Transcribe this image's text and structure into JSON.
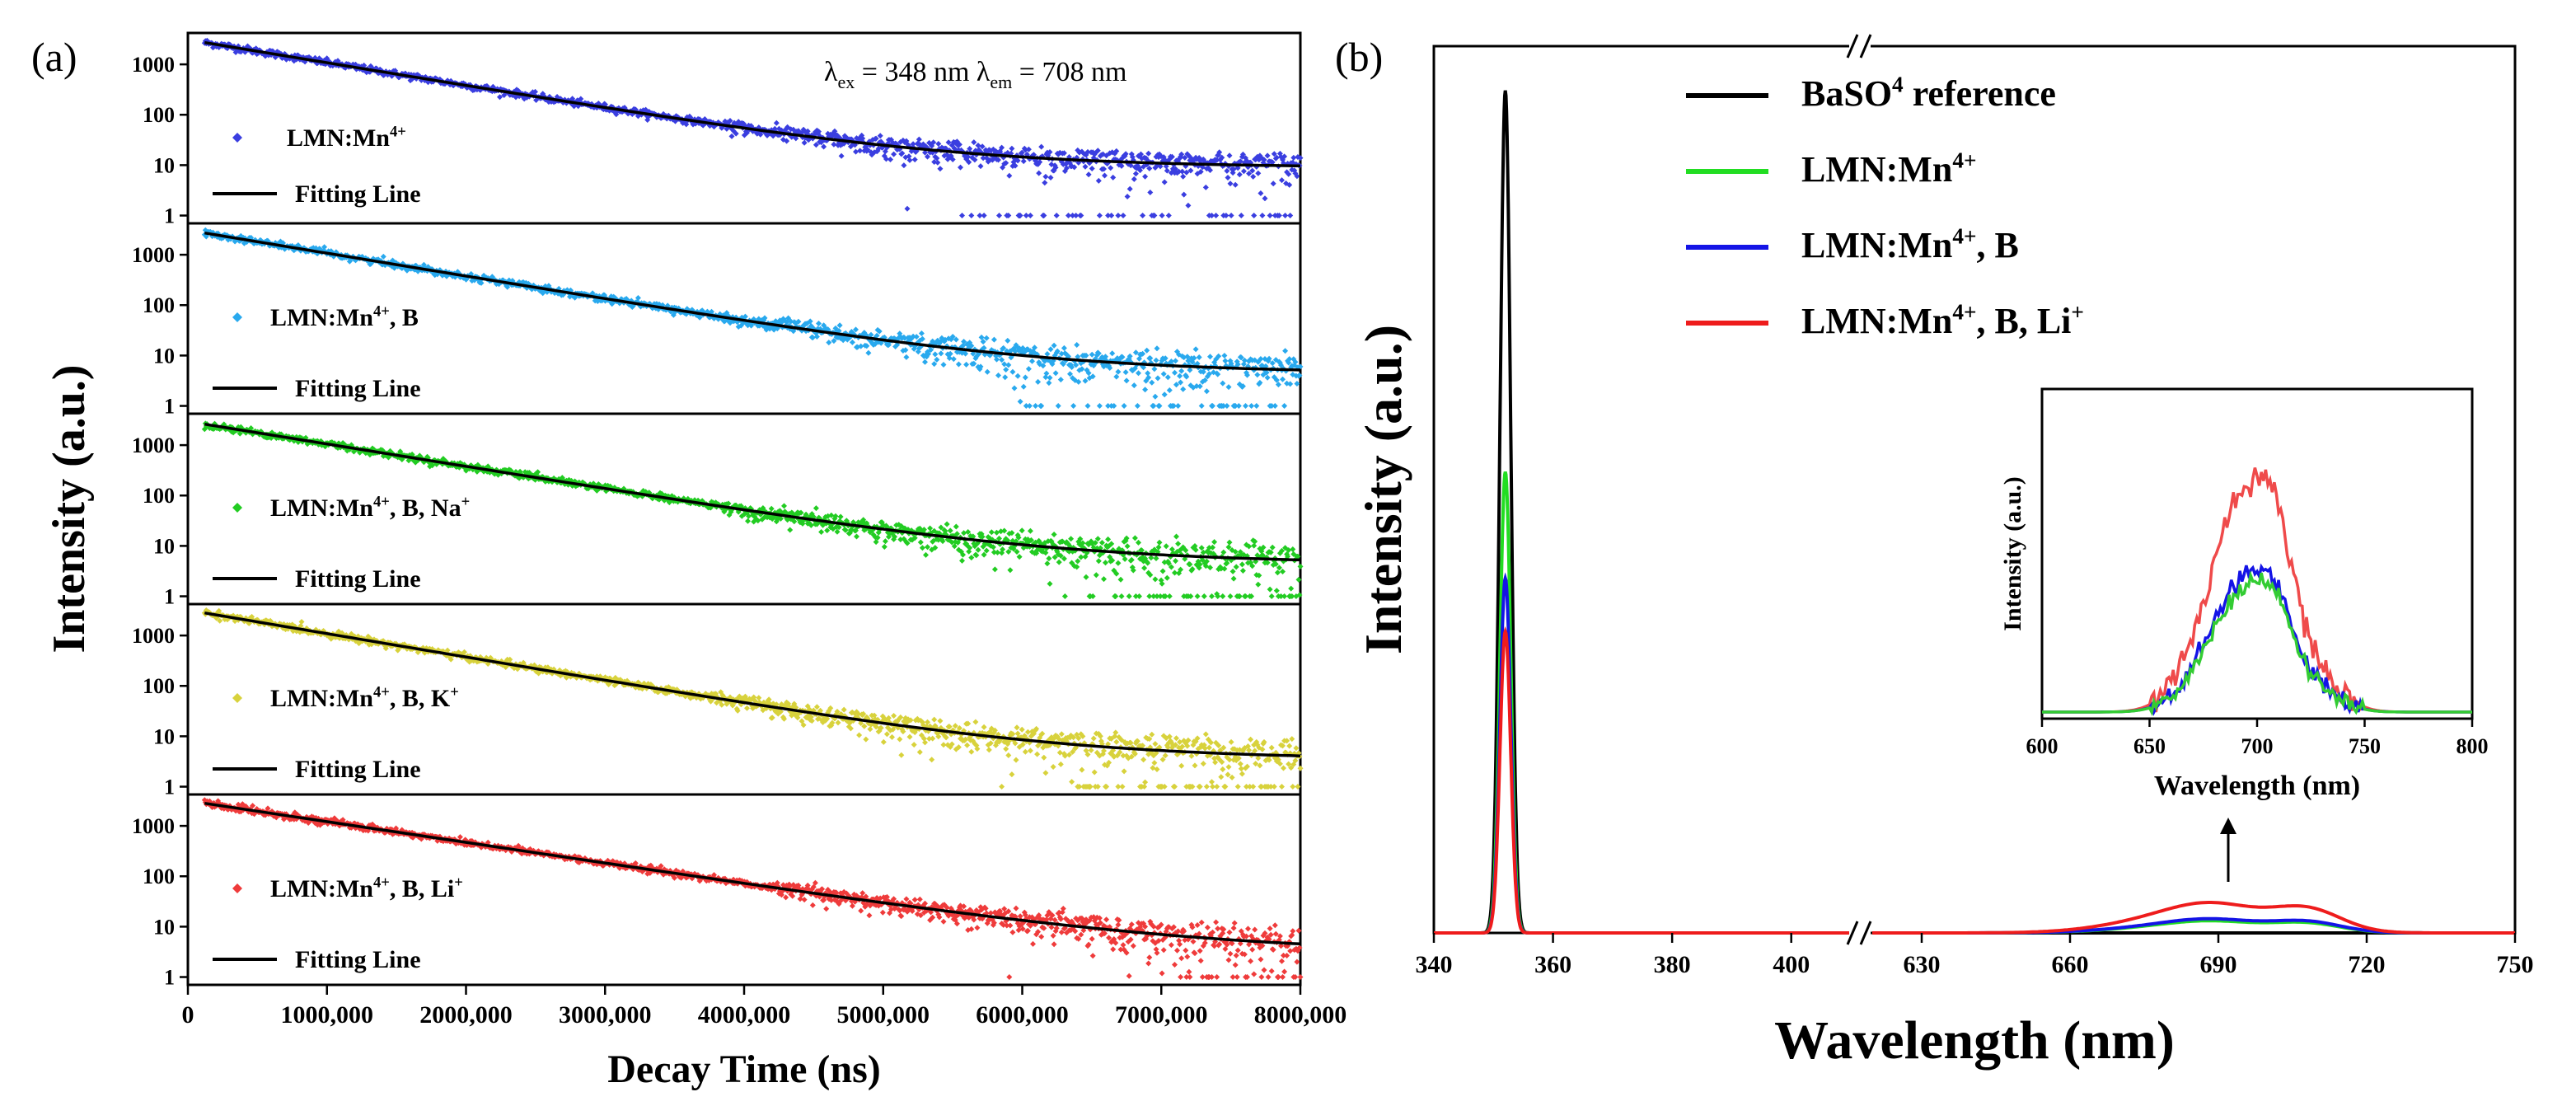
{
  "panels": {
    "a": {
      "tag": "(a)"
    },
    "b": {
      "tag": "(b)"
    }
  },
  "chart_data": [
    {
      "panel": "a",
      "type": "scatter",
      "xlabel": "Decay Time (ns)",
      "ylabel": "Intensity (a.u.)",
      "annotation": {
        "ex_symbol": "λ",
        "ex_sub": "ex",
        "ex_text": "= 348 nm",
        "em_symbol": "λ",
        "em_sub": "em",
        "em_text": "= 708 nm"
      },
      "xlim": [
        0,
        8000000
      ],
      "x_ticks": [
        0,
        1000000,
        2000000,
        3000000,
        4000000,
        5000000,
        6000000,
        7000000,
        8000000
      ],
      "x_tick_labels": [
        "0",
        "1000,000",
        "2000,000",
        "3000,000",
        "4000,000",
        "5000,000",
        "6000,000",
        "7000,000",
        "8000,000"
      ],
      "y_scale": "log",
      "y_ticks": [
        1,
        10,
        100,
        1000
      ],
      "y_tick_labels": [
        "1",
        "10",
        "100",
        "1000"
      ],
      "fit_label": "Fitting Line",
      "fit_color": "#000000",
      "subplots": [
        {
          "name": "LMN:Mn4+",
          "label_parts": [
            "LMN:Mn",
            "4+",
            ""
          ],
          "color": "#3a3ee0",
          "fit": {
            "I0": 2700,
            "tau": 950000,
            "offset": 9
          },
          "start_intensity": 2800,
          "noise_start": 5500000
        },
        {
          "name": "LMN:Mn4+, B",
          "label_parts": [
            "LMN:Mn",
            "4+",
            ", B"
          ],
          "color": "#29a9ee",
          "fit": {
            "I0": 2700,
            "tau": 950000,
            "offset": 4.5
          },
          "start_intensity": 2700,
          "noise_start": 6000000
        },
        {
          "name": "LMN:Mn4+, B, Na+",
          "label_parts": [
            "LMN:Mn",
            "4+",
            ", B, Na",
            "+"
          ],
          "color": "#22cc22",
          "fit": {
            "I0": 2600,
            "tau": 970000,
            "offset": 4.5
          },
          "start_intensity": 2600,
          "noise_start": 6300000
        },
        {
          "name": "LMN:Mn4+, B, K+",
          "label_parts": [
            "LMN:Mn",
            "4+",
            ", B, K",
            "+"
          ],
          "color": "#d8d23c",
          "fit": {
            "I0": 2800,
            "tau": 930000,
            "offset": 3.5
          },
          "start_intensity": 2800,
          "noise_start": 6300000
        },
        {
          "name": "LMN:Mn4+, B, Li+",
          "label_parts": [
            "LMN:Mn",
            "4+",
            ", B, Li",
            "+"
          ],
          "color": "#ef3b3b",
          "fit": {
            "I0": 2800,
            "tau": 1050000,
            "offset": 3
          },
          "start_intensity": 2800,
          "noise_start": 7200000
        }
      ]
    },
    {
      "panel": "b",
      "type": "line",
      "xlabel": "Wavelength (nm)",
      "ylabel": "Intensity (a.u.)",
      "x_axis_segments": [
        {
          "range": [
            340,
            410
          ],
          "ticks": [
            340,
            360,
            380,
            400
          ]
        },
        {
          "range": [
            620,
            750
          ],
          "ticks": [
            630,
            660,
            690,
            720,
            750
          ]
        }
      ],
      "axis_break": true,
      "series": [
        {
          "name": "BaSO4 reference",
          "label_parts": [
            "BaSO",
            "4",
            " reference"
          ],
          "color": "#000000",
          "peak_x": 352,
          "peak_height": 0.95,
          "peak_width": 0.9,
          "emission_height": 0.0
        },
        {
          "name": "LMN:Mn4+",
          "label_parts": [
            "LMN:Mn",
            "4+",
            ""
          ],
          "color": "#22dd22",
          "peak_x": 352,
          "peak_height": 0.52,
          "peak_width": 0.9,
          "emission_height": 0.012
        },
        {
          "name": "LMN:Mn4+, B",
          "label_parts": [
            "LMN:Mn",
            "4+",
            ", B"
          ],
          "color": "#1414e6",
          "peak_x": 352,
          "peak_height": 0.4,
          "peak_width": 0.9,
          "emission_height": 0.014
        },
        {
          "name": "LMN:Mn4+, B, Li+",
          "label_parts": [
            "LMN:Mn",
            "4+",
            ", B, Li",
            "+"
          ],
          "color": "#ee1c1c",
          "peak_x": 352,
          "peak_height": 0.34,
          "peak_width": 0.9,
          "emission_height": 0.03
        }
      ],
      "inset": {
        "xlabel": "Wavelength (nm)",
        "ylabel": "Intensity (a.u.)",
        "xlim": [
          600,
          800
        ],
        "x_ticks": [
          600,
          650,
          700,
          750,
          800
        ],
        "series": [
          {
            "name": "LMN:Mn4+, B, Li+",
            "color": "#ef4a4a",
            "scale": 1.0
          },
          {
            "name": "LMN:Mn4+, B",
            "color": "#1414e6",
            "scale": 0.6
          },
          {
            "name": "LMN:Mn4+",
            "color": "#33cc33",
            "scale": 0.55
          }
        ]
      }
    }
  ]
}
